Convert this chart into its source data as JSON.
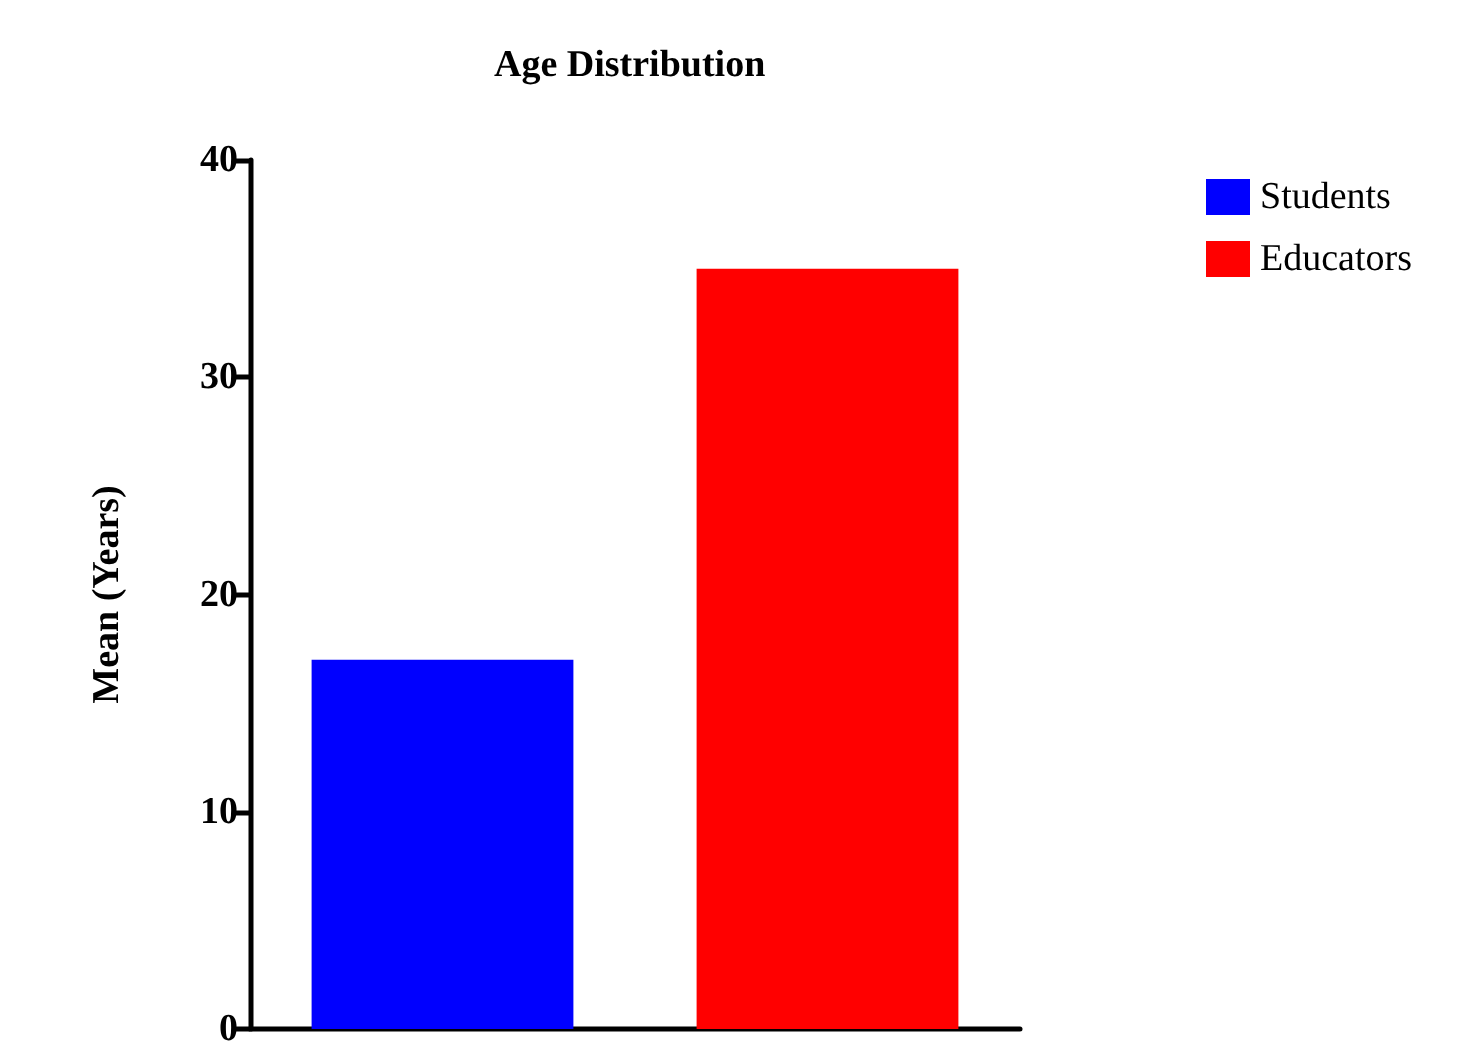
{
  "chart_data": {
    "type": "bar",
    "title": "Age Distribution",
    "ylabel": "Mean (Years)",
    "categories": [
      null,
      null
    ],
    "series": [
      {
        "name": "Students",
        "color": "#0000ff",
        "values": [
          17,
          null
        ]
      },
      {
        "name": "Educators",
        "color": "#ff0000",
        "values": [
          null,
          35
        ]
      }
    ],
    "ylim": [
      0,
      40
    ],
    "yticks": [
      0,
      10,
      20,
      30,
      40
    ],
    "grid": false,
    "legend": "top right"
  }
}
